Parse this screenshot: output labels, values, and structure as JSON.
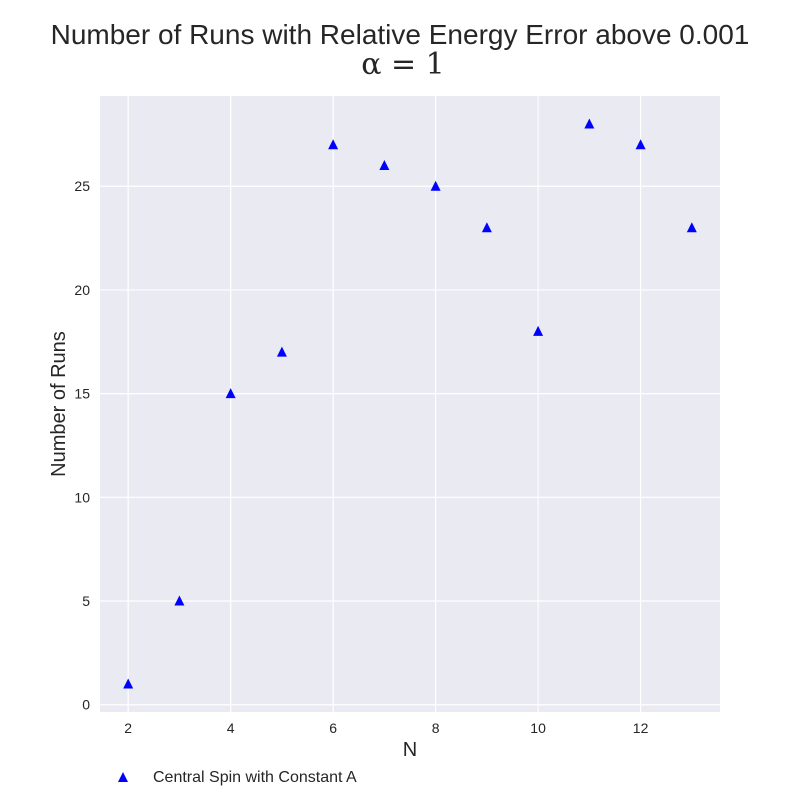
{
  "chart_data": {
    "type": "scatter",
    "title": "Number of Runs with Relative Energy Error above 0.001",
    "subtitle": "α = 1",
    "xlabel": "N",
    "ylabel": "Number of Runs",
    "xlim": [
      1.45,
      13.55
    ],
    "ylim": [
      -0.35,
      29.35
    ],
    "xticks": [
      2,
      4,
      6,
      8,
      10,
      12
    ],
    "yticks": [
      0,
      5,
      10,
      15,
      20,
      25
    ],
    "grid": true,
    "background_color": "#eaeaf2",
    "grid_color": "#ffffff",
    "legend_position": "bottom-left",
    "series": [
      {
        "name": "Central Spin with Constant A",
        "marker": "triangle",
        "color": "#0000ff",
        "x": [
          2,
          3,
          4,
          5,
          6,
          7,
          8,
          9,
          10,
          11,
          12,
          13
        ],
        "y": [
          1,
          5,
          15,
          17,
          27,
          26,
          25,
          23,
          18,
          28,
          27,
          23
        ]
      }
    ]
  }
}
